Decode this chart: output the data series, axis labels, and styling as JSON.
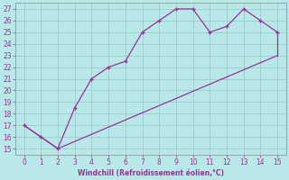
{
  "xlabel": "Windchill (Refroidissement éolien,°C)",
  "line1_x": [
    0,
    1,
    2,
    3,
    4,
    5,
    6,
    7,
    8,
    9,
    10,
    11,
    12,
    13,
    14,
    15
  ],
  "line1_y": [
    17,
    16,
    15,
    18.5,
    21,
    22,
    22.5,
    25,
    26,
    27,
    27,
    25,
    25.5,
    27,
    26,
    25
  ],
  "line2_x": [
    0,
    2,
    15
  ],
  "line2_y": [
    17,
    15,
    23
  ],
  "xlim": [
    -0.5,
    15.5
  ],
  "ylim": [
    14.5,
    27.5
  ],
  "yticks": [
    15,
    16,
    17,
    18,
    19,
    20,
    21,
    22,
    23,
    24,
    25,
    26,
    27
  ],
  "xticks": [
    0,
    1,
    2,
    3,
    4,
    5,
    6,
    7,
    8,
    9,
    10,
    11,
    12,
    13,
    14,
    15
  ],
  "line_color": "#993399",
  "marker": "+",
  "bg_color": "#b8e8e8",
  "grid_color": "#99cccc",
  "tick_color": "#993399",
  "label_color": "#993399",
  "spine_color": "#888888"
}
